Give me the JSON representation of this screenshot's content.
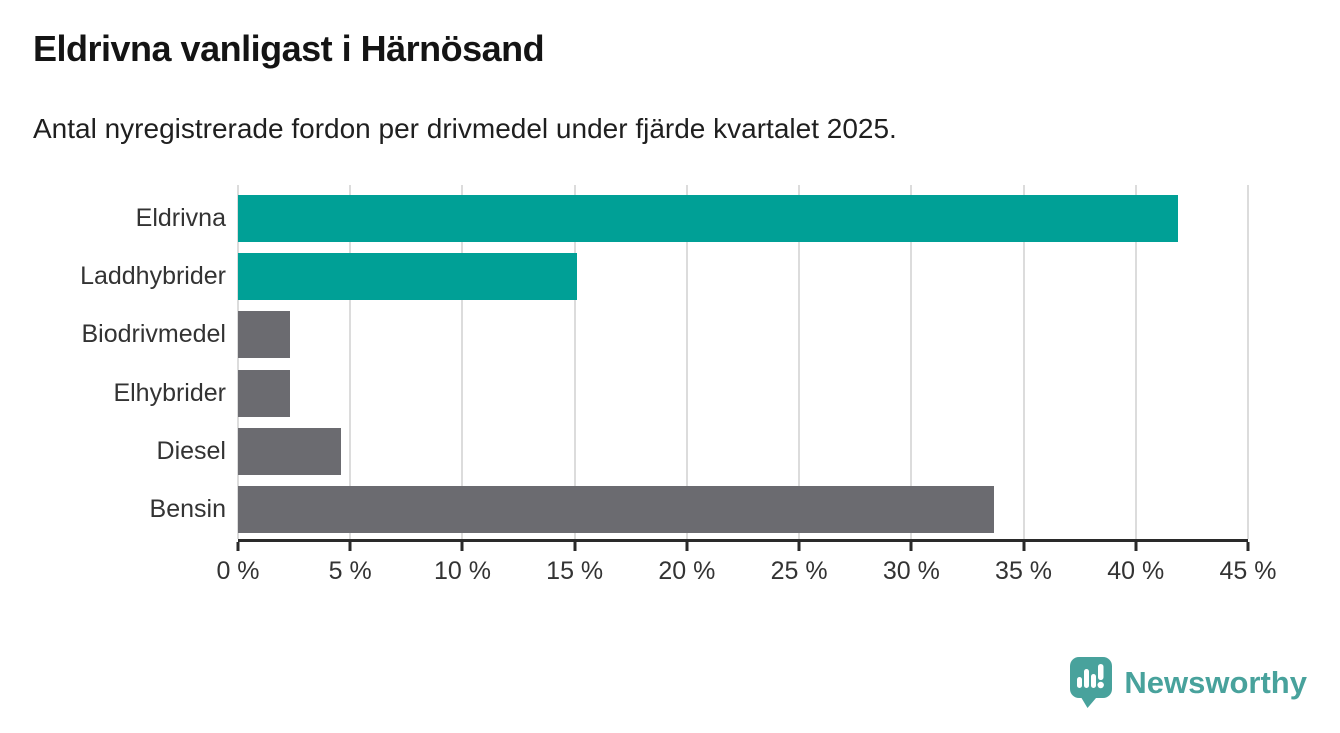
{
  "header": {
    "title": "Eldrivna vanligast i Härnösand",
    "subtitle": "Antal nyregistrerade fordon per drivmedel under fjärde kvartalet 2025."
  },
  "chart_data": {
    "type": "bar",
    "orientation": "horizontal",
    "title": "Eldrivna vanligast i Härnösand",
    "subtitle": "Antal nyregistrerade fordon per drivmedel under fjärde kvartalet 2025.",
    "categories": [
      "Eldrivna",
      "Laddhybrider",
      "Biodrivmedel",
      "Elhybrider",
      "Diesel",
      "Bensin"
    ],
    "values": [
      41.9,
      15.1,
      2.3,
      2.3,
      4.6,
      33.7
    ],
    "unit": "%",
    "xlabel": "",
    "ylabel": "",
    "xlim": [
      0,
      45
    ],
    "x_ticks": [
      0,
      5,
      10,
      15,
      20,
      25,
      30,
      35,
      40,
      45
    ],
    "x_tick_labels": [
      "0 %",
      "5 %",
      "10 %",
      "15 %",
      "20 %",
      "25 %",
      "30 %",
      "35 %",
      "40 %",
      "45 %"
    ],
    "grid": "vertical",
    "bar_colors": [
      "#00A096",
      "#00A096",
      "#6B6B70",
      "#6B6B70",
      "#6B6B70",
      "#6B6B70"
    ],
    "highlight_color": "#00A096",
    "default_color": "#6B6B70",
    "gridline_color": "#dcdcdc",
    "legend": "none"
  },
  "footer": {
    "brand": "Newsworthy",
    "brand_color": "#48A29C"
  }
}
